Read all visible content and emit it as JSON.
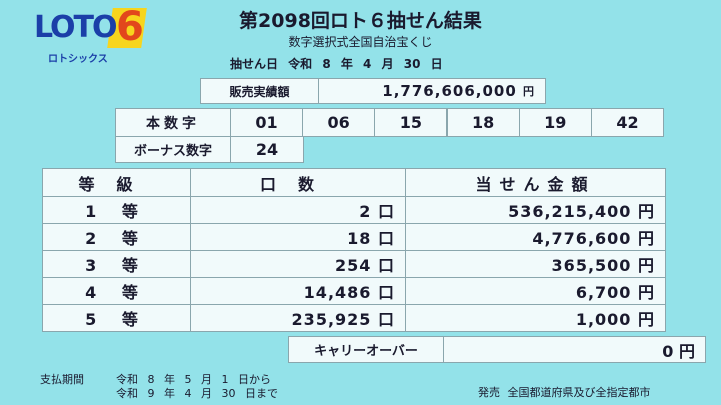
{
  "logo": {
    "text": "LOTO",
    "digit": "6",
    "kana": "ロトシックス"
  },
  "header": {
    "title": "第2098回ロト６抽せん結果",
    "subtitle": "数字選択式全国自治宝くじ",
    "draw_date": "抽せん日 令和 8 年 4 月 30 日"
  },
  "sales": {
    "label": "販売実績額",
    "value": "1,776,606,000",
    "unit": "円"
  },
  "numbers": {
    "label": "本数字",
    "values": [
      "01",
      "06",
      "15",
      "18",
      "19",
      "42"
    ],
    "bonus_label": "ボーナス数字",
    "bonus": "24"
  },
  "table": {
    "headers": [
      "等級",
      "口数",
      "当せん金額"
    ],
    "rows": [
      [
        "1 等",
        "2 口",
        "536,215,400 円"
      ],
      [
        "2 等",
        "18 口",
        "4,776,600 円"
      ],
      [
        "3 等",
        "254 口",
        "365,500 円"
      ],
      [
        "4 等",
        "14,486 口",
        "6,700 円"
      ],
      [
        "5 等",
        "235,925 口",
        "1,000 円"
      ]
    ]
  },
  "carryover": {
    "label": "キャリーオーバー",
    "value": "0 円"
  },
  "footer": {
    "period_label": "支払期間",
    "period_start": "令和 8 年 5 月 1 日から",
    "period_end": "令和 9 年 4 月 30 日まで",
    "seller": "発売 全国都道府県及び全指定都市"
  }
}
